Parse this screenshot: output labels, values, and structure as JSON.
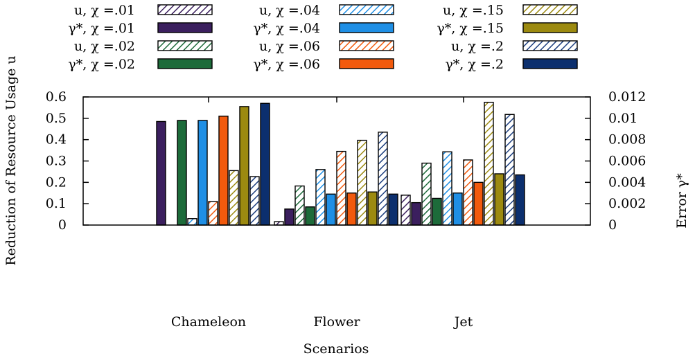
{
  "chart_data": {
    "type": "bar",
    "xlabel": "Scenarios",
    "ylabel": "Reduction of Resource Usage u",
    "y2label": "Error γ*",
    "ylim": [
      0,
      0.6
    ],
    "y2lim": [
      0,
      0.012
    ],
    "yticks": [
      "0",
      "0.1",
      "0.2",
      "0.3",
      "0.4",
      "0.5",
      "0.6"
    ],
    "y2ticks": [
      "0",
      "0.002",
      "0.004",
      "0.006",
      "0.008",
      "0.01",
      "0.012"
    ],
    "categories": [
      "Chameleon",
      "Flower",
      "Jet"
    ],
    "legend_position": "top",
    "series": [
      {
        "name": "u, χ =.01",
        "axis": "left",
        "style": "hatched",
        "color": "#3b1f5e",
        "values": [
          0.0,
          0.016,
          0.14
        ]
      },
      {
        "name": "γ*, χ =.01",
        "axis": "right",
        "style": "solid",
        "color": "#3b1f5e",
        "values": [
          0.0097,
          0.0015,
          0.0021
        ]
      },
      {
        "name": "u, χ =.02",
        "axis": "left",
        "style": "hatched",
        "color": "#1d6b3a",
        "values": [
          0.0,
          0.183,
          0.29
        ]
      },
      {
        "name": "γ*, χ =.02",
        "axis": "right",
        "style": "solid",
        "color": "#1d6b3a",
        "values": [
          0.0098,
          0.0017,
          0.0025
        ]
      },
      {
        "name": "u, χ =.04",
        "axis": "left",
        "style": "hatched",
        "color": "#1f8fe5",
        "values": [
          0.03,
          0.26,
          0.343
        ]
      },
      {
        "name": "γ*, χ =.04",
        "axis": "right",
        "style": "solid",
        "color": "#1f8fe5",
        "values": [
          0.0098,
          0.0029,
          0.003
        ]
      },
      {
        "name": "u, χ =.06",
        "axis": "left",
        "style": "hatched",
        "color": "#f25a0d",
        "values": [
          0.11,
          0.345,
          0.305
        ]
      },
      {
        "name": "γ*, χ =.06",
        "axis": "right",
        "style": "solid",
        "color": "#f25a0d",
        "values": [
          0.0102,
          0.003,
          0.004
        ]
      },
      {
        "name": "u, χ =.15",
        "axis": "left",
        "style": "hatched",
        "color": "#9c8a10",
        "values": [
          0.255,
          0.397,
          0.575
        ]
      },
      {
        "name": "γ*, χ =.15",
        "axis": "right",
        "style": "solid",
        "color": "#9c8a10",
        "values": [
          0.0111,
          0.0031,
          0.0048
        ]
      },
      {
        "name": "u, χ =.2",
        "axis": "left",
        "style": "hatched",
        "color": "#1c3e7e",
        "values": [
          0.227,
          0.435,
          0.518
        ]
      },
      {
        "name": "γ*, χ =.2",
        "axis": "right",
        "style": "solid",
        "color": "#0c2f6e",
        "values": [
          0.0114,
          0.0029,
          0.0047
        ]
      }
    ]
  }
}
